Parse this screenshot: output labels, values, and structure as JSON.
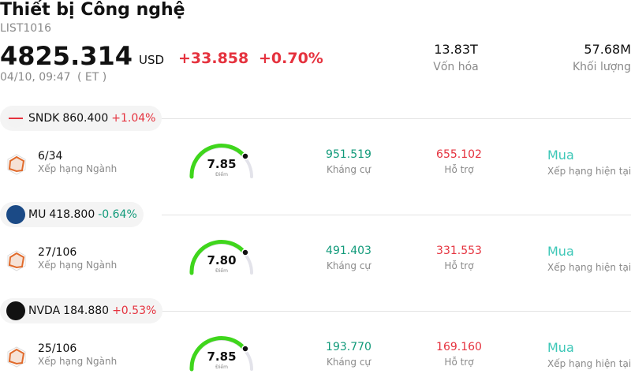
{
  "header": {
    "title": "Thiết bị Công nghệ",
    "code": "LIST1016",
    "price": "4825.314",
    "currency": "USD",
    "change": "+33.858",
    "change_pct": "+0.70%",
    "time": "04/10, 09:47",
    "timezone": "( ET )",
    "stats": [
      {
        "value": "13.83T",
        "label": "Vốn hóa"
      },
      {
        "value": "57.68M",
        "label": "Khối lượng"
      }
    ]
  },
  "stocks": [
    {
      "ticker": "SNDK",
      "price": "860.400",
      "change": "+1.04%",
      "rank": "6/34",
      "rank_label": "Xếp hạng Ngành",
      "score": "7.85",
      "score_label": "Điểm",
      "resistance": "951.519",
      "resistance_label": "Kháng cự",
      "support": "655.102",
      "support_label": "Hỗ trợ",
      "rating": "Mua",
      "rating_label": "Xếp hạng hiện tại"
    },
    {
      "ticker": "MU",
      "price": "418.800",
      "change": "-0.64%",
      "rank": "27/106",
      "rank_label": "Xếp hạng Ngành",
      "score": "7.80",
      "score_label": "Điểm",
      "resistance": "491.403",
      "resistance_label": "Kháng cự",
      "support": "331.553",
      "support_label": "Hỗ trợ",
      "rating": "Mua",
      "rating_label": "Xếp hạng hiện tại"
    },
    {
      "ticker": "NVDA",
      "price": "184.880",
      "change": "+0.53%",
      "rank": "25/106",
      "rank_label": "Xếp hạng Ngành",
      "score": "7.85",
      "score_label": "Điểm",
      "resistance": "193.770",
      "resistance_label": "Kháng cự",
      "support": "169.160",
      "support_label": "Hỗ trợ",
      "rating": "Mua",
      "rating_label": "Xếp hạng hiện tại"
    }
  ]
}
